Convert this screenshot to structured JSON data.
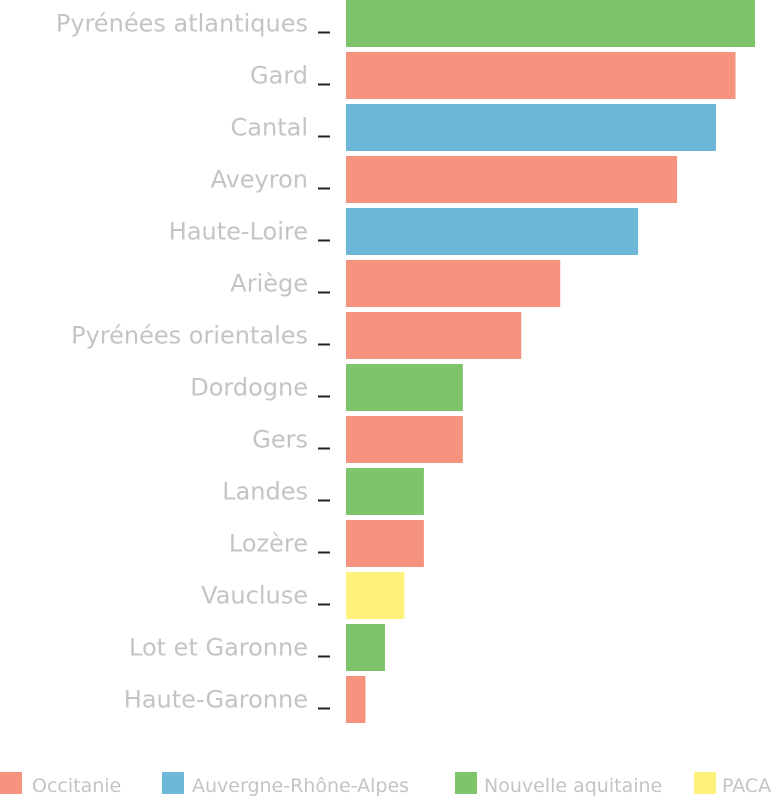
{
  "colors": {
    "Occitanie": "#f5937f",
    "Auvergne-Rhône-Alpes": "#6db8d9",
    "Nouvelle aquitaine": "#7dc46b",
    "PACA": "#fef17c"
  },
  "chart_data": {
    "type": "bar",
    "orientation": "horizontal",
    "title": "",
    "xlabel": "",
    "ylabel": "",
    "xlim": [
      0,
      21
    ],
    "grid": false,
    "legend_position": "bottom",
    "categories": [
      "Pyrénées atlantiques",
      "Gard",
      "Cantal",
      "Aveyron",
      "Haute-Loire",
      "Ariège",
      "Pyrénées orientales",
      "Dordogne",
      "Gers",
      "Landes",
      "Lozère",
      "Vaucluse",
      "Lot et Garonne",
      "Haute-Garonne"
    ],
    "values": [
      21,
      20,
      19,
      17,
      15,
      11,
      9,
      6,
      6,
      4,
      4,
      3,
      2,
      1
    ],
    "groups": [
      "Nouvelle aquitaine",
      "Occitanie",
      "Auvergne-Rhône-Alpes",
      "Occitanie",
      "Auvergne-Rhône-Alpes",
      "Occitanie",
      "Occitanie",
      "Nouvelle aquitaine",
      "Occitanie",
      "Nouvelle aquitaine",
      "Occitanie",
      "PACA",
      "Nouvelle aquitaine",
      "Occitanie"
    ],
    "legend": [
      "Occitanie",
      "Auvergne-Rhône-Alpes",
      "Nouvelle aquitaine",
      "PACA"
    ]
  }
}
